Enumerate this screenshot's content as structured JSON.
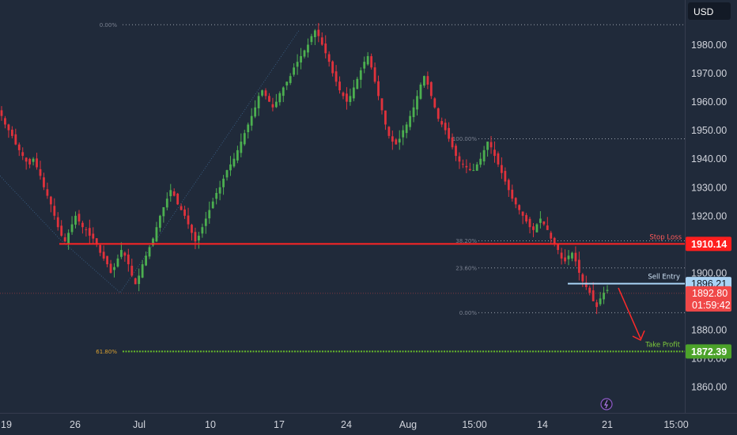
{
  "currency_label": "USD",
  "colors": {
    "background": "#202a3a",
    "up": "#4caf50",
    "down": "#e0323c",
    "stop_loss": "#ff2424",
    "sell_entry": "#a9d3f5",
    "take_profit": "#66bb2a",
    "price_tag": "#f04848"
  },
  "chart_data": {
    "type": "candlestick",
    "y_ticks": [
      "1980.00",
      "1970.00",
      "1960.00",
      "1950.00",
      "1940.00",
      "1930.00",
      "1920.00",
      "1910.00",
      "1900.00",
      "1890.00",
      "1880.00",
      "1870.00",
      "1860.00"
    ],
    "ylim": [
      1854,
      1994
    ],
    "x_ticks": [
      "19",
      "26",
      "Jul",
      "10",
      "17",
      "24",
      "Aug",
      "15:00",
      "14",
      "21",
      "15:00"
    ],
    "levels": {
      "stop_loss": {
        "label": "Stop Loss",
        "value": "1910.14"
      },
      "sell_entry": {
        "label": "Sell Entry",
        "value": "1896.21"
      },
      "take_profit": {
        "label": "Take Profit",
        "value": "1872.39"
      }
    },
    "last_price": {
      "value": "1892.80",
      "countdown": "01:59:42"
    },
    "fib_left": {
      "top_label": "0.00%",
      "bottom_label": "61.80%",
      "top_value": 1987,
      "bottom_value": 1872.4
    },
    "fib_right": {
      "labels": [
        "100.00%",
        "38.20%",
        "23.60%",
        "0.00%"
      ],
      "values": [
        1947,
        1911.2,
        1901.7,
        1886
      ]
    },
    "anchors": [
      {
        "x": "Jun 17",
        "y": 1934
      },
      {
        "x": "Jun 23",
        "y": 1912
      },
      {
        "x": "Jun 29",
        "y": 1893
      },
      {
        "x": "Jul 17",
        "y": 1985
      }
    ],
    "closes": [
      1955,
      1952,
      1950,
      1948,
      1945,
      1943,
      1941,
      1939,
      1938,
      1940,
      1937,
      1934,
      1930,
      1927,
      1924,
      1920,
      1916,
      1913,
      1911,
      1914,
      1917,
      1920,
      1918,
      1916,
      1915,
      1913,
      1912,
      1910,
      1907,
      1905,
      1903,
      1900,
      1902,
      1905,
      1908,
      1906,
      1903,
      1899,
      1896,
      1899,
      1903,
      1906,
      1909,
      1912,
      1916,
      1920,
      1923,
      1926,
      1929,
      1927,
      1924,
      1922,
      1920,
      1917,
      1914,
      1911,
      1913,
      1916,
      1919,
      1922,
      1925,
      1928,
      1930,
      1933,
      1936,
      1938,
      1940,
      1943,
      1946,
      1949,
      1952,
      1955,
      1958,
      1962,
      1964,
      1962,
      1960,
      1958,
      1960,
      1963,
      1965,
      1967,
      1969,
      1972,
      1974,
      1976,
      1978,
      1980,
      1983,
      1985,
      1983,
      1980,
      1977,
      1974,
      1970,
      1967,
      1964,
      1962,
      1960,
      1962,
      1965,
      1968,
      1971,
      1974,
      1976,
      1972,
      1967,
      1962,
      1957,
      1952,
      1948,
      1946,
      1945,
      1947,
      1950,
      1952,
      1955,
      1958,
      1962,
      1966,
      1969,
      1966,
      1962,
      1958,
      1954,
      1952,
      1950,
      1947,
      1944,
      1941,
      1939,
      1938,
      1937,
      1936,
      1936,
      1938,
      1940,
      1943,
      1946,
      1944,
      1941,
      1938,
      1935,
      1932,
      1929,
      1926,
      1924,
      1922,
      1920,
      1918,
      1916,
      1915,
      1917,
      1919,
      1917,
      1915,
      1912,
      1910,
      1908,
      1905,
      1904,
      1906,
      1907,
      1904,
      1900,
      1897,
      1895,
      1893,
      1890,
      1888,
      1891,
      1893,
      1894
    ]
  }
}
